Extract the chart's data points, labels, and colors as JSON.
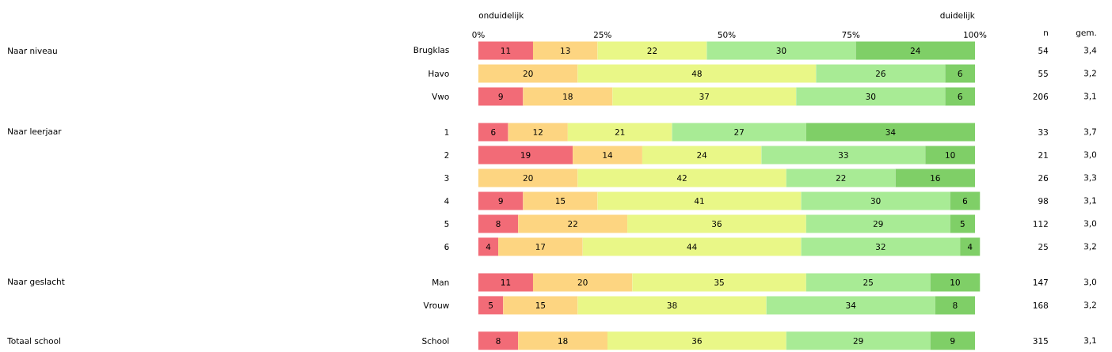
{
  "chart_data": {
    "type": "bar",
    "orientation": "horizontal",
    "stacked": true,
    "data_labels": true,
    "grid": false,
    "categories": [
      "Brugklas",
      "Havo",
      "Vwo",
      null,
      "1",
      "2",
      "3",
      "4",
      "5",
      "6",
      null,
      "Man",
      "Vrouw",
      null,
      "School"
    ],
    "xlim": [
      0,
      101
    ],
    "xticks": [
      {
        "value": 0,
        "label": "0%"
      },
      {
        "value": 25,
        "label": "25%"
      },
      {
        "value": 50,
        "label": "50%"
      },
      {
        "value": 75,
        "label": "75%"
      },
      {
        "value": 100,
        "label": "100%"
      }
    ],
    "series": [
      {
        "color": "#f26b77",
        "values": [
          11,
          null,
          9,
          null,
          6,
          19,
          null,
          9,
          8,
          4,
          null,
          11,
          5,
          null,
          8
        ]
      },
      {
        "color": "#fdd581",
        "values": [
          13,
          20,
          18,
          null,
          12,
          14,
          20,
          15,
          22,
          17,
          null,
          20,
          15,
          null,
          18
        ]
      },
      {
        "color": "#e9f787",
        "values": [
          22,
          48,
          37,
          null,
          21,
          24,
          42,
          41,
          36,
          44,
          null,
          35,
          38,
          null,
          36
        ]
      },
      {
        "color": "#a8eb95",
        "values": [
          30,
          26,
          30,
          null,
          27,
          33,
          22,
          30,
          29,
          32,
          null,
          25,
          34,
          null,
          29
        ]
      },
      {
        "color": "#7fcf67",
        "values": [
          24,
          6,
          6,
          null,
          34,
          10,
          16,
          6,
          5,
          4,
          null,
          10,
          8,
          null,
          9
        ]
      }
    ],
    "annotations": [
      "onduidelijk",
      "duidelijk",
      "n",
      "gem.",
      "Naar niveau",
      "Naar leerjaar",
      "Naar geslacht",
      "Totaal school",
      "54",
      "55",
      "206",
      "33",
      "21",
      "26",
      "98",
      "112",
      "25",
      "147",
      "168",
      "315",
      "3,4",
      "3,2",
      "3,1",
      "3,7",
      "3,0",
      "3,3",
      "3,1",
      "3,0",
      "3,2",
      "3,0",
      "3,2",
      "3,1"
    ]
  }
}
